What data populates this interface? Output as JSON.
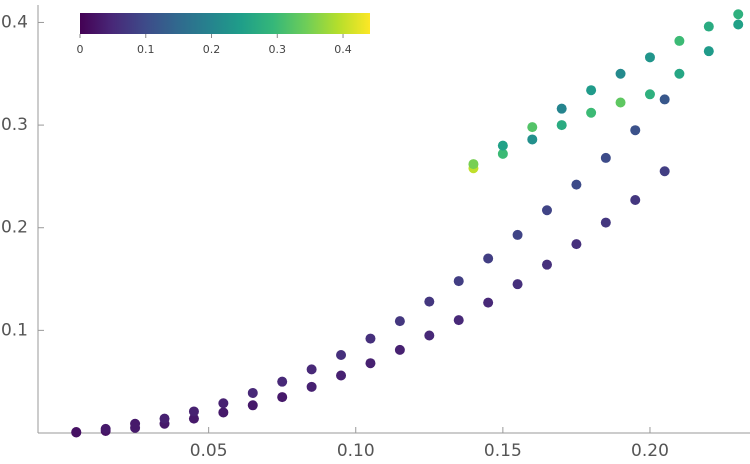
{
  "chart_data": {
    "type": "scatter",
    "x": [
      0.005,
      0.005,
      0.015,
      0.015,
      0.025,
      0.025,
      0.035,
      0.035,
      0.045,
      0.045,
      0.055,
      0.055,
      0.065,
      0.065,
      0.075,
      0.075,
      0.085,
      0.085,
      0.095,
      0.095,
      0.105,
      0.105,
      0.115,
      0.115,
      0.125,
      0.125,
      0.135,
      0.135,
      0.145,
      0.145,
      0.155,
      0.155,
      0.165,
      0.165,
      0.175,
      0.175,
      0.185,
      0.185,
      0.195,
      0.195,
      0.205,
      0.205,
      0.14,
      0.14,
      0.15,
      0.15,
      0.16,
      0.16,
      0.17,
      0.17,
      0.18,
      0.18,
      0.19,
      0.19,
      0.2,
      0.2,
      0.21,
      0.21,
      0.22,
      0.22,
      0.23,
      0.23
    ],
    "y": [
      0.0005,
      0.001,
      0.002,
      0.004,
      0.005,
      0.009,
      0.009,
      0.014,
      0.014,
      0.021,
      0.02,
      0.029,
      0.027,
      0.039,
      0.035,
      0.05,
      0.045,
      0.062,
      0.056,
      0.076,
      0.068,
      0.092,
      0.081,
      0.109,
      0.095,
      0.128,
      0.11,
      0.148,
      0.127,
      0.17,
      0.145,
      0.193,
      0.164,
      0.217,
      0.184,
      0.242,
      0.205,
      0.268,
      0.227,
      0.295,
      0.255,
      0.325,
      0.258,
      0.262,
      0.272,
      0.28,
      0.286,
      0.298,
      0.3,
      0.316,
      0.312,
      0.334,
      0.322,
      0.35,
      0.33,
      0.366,
      0.35,
      0.382,
      0.372,
      0.396,
      0.398,
      0.408
    ],
    "color_values": [
      0.02,
      0.02,
      0.02,
      0.03,
      0.03,
      0.03,
      0.03,
      0.04,
      0.03,
      0.04,
      0.03,
      0.04,
      0.03,
      0.05,
      0.03,
      0.05,
      0.04,
      0.05,
      0.04,
      0.06,
      0.04,
      0.06,
      0.04,
      0.07,
      0.05,
      0.07,
      0.05,
      0.08,
      0.05,
      0.08,
      0.06,
      0.09,
      0.06,
      0.09,
      0.06,
      0.1,
      0.07,
      0.1,
      0.07,
      0.11,
      0.08,
      0.12,
      0.4,
      0.35,
      0.3,
      0.25,
      0.22,
      0.32,
      0.27,
      0.2,
      0.3,
      0.24,
      0.33,
      0.21,
      0.28,
      0.23,
      0.26,
      0.3,
      0.24,
      0.27,
      0.25,
      0.28
    ],
    "xlim": [
      -0.008,
      0.234
    ],
    "ylim": [
      0,
      0.417
    ],
    "xticks": [
      0.05,
      {
        "value": 0.1,
        "label": "0.10"
      },
      0.15,
      {
        "value": 0.2,
        "label": "0.20"
      }
    ],
    "yticks": [
      0.1,
      0.2,
      0.3,
      0.4
    ],
    "clim": [
      0,
      0.441
    ],
    "cticks": [
      0,
      0.1,
      0.2,
      0.3,
      0.4
    ]
  }
}
